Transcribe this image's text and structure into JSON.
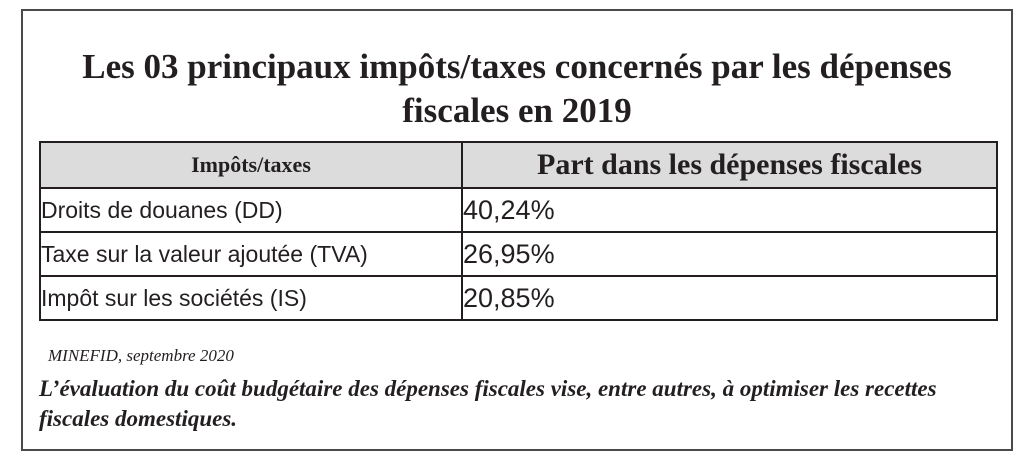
{
  "title": {
    "line1": "Les 03 principaux impôts/taxes concernés par les dépenses",
    "line2": "fiscales en 2019"
  },
  "table": {
    "headers": [
      "Impôts/taxes",
      "Part dans les dépenses fiscales"
    ],
    "rows": [
      {
        "name": "Droits de douanes (DD)",
        "share": "40,24%"
      },
      {
        "name": "Taxe sur la valeur ajoutée (TVA)",
        "share": "26,95%"
      },
      {
        "name": "Impôt sur les sociétés (IS)",
        "share": "20,85%"
      }
    ]
  },
  "source": "MINEFID, septembre 2020",
  "comment": "L’évaluation du coût budgétaire des dépenses fiscales vise, entre autres, à optimiser les recettes fiscales domestiques.",
  "colors": {
    "border": "#231f20",
    "header_bg": "#dcdcdc",
    "frame": "#4a4a4a"
  }
}
